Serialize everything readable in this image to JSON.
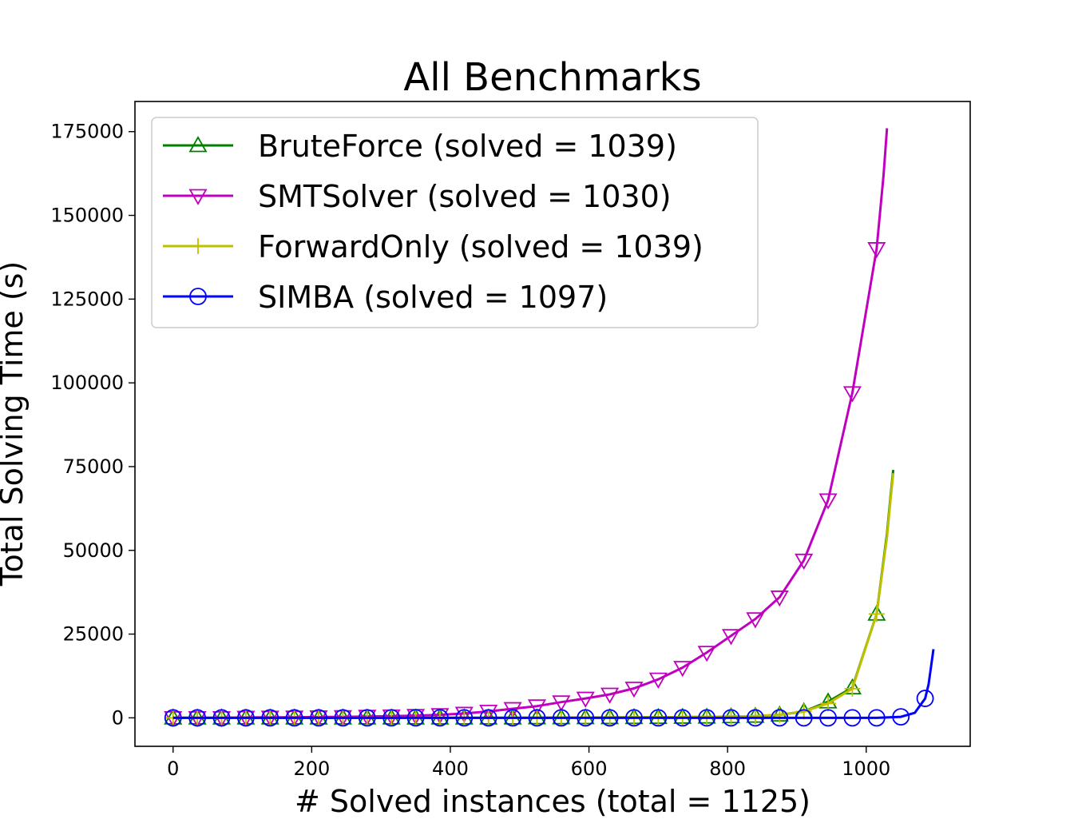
{
  "chart_data": {
    "type": "line",
    "title": "All Benchmarks",
    "xlabel": "# Solved instances (total = 1125)",
    "ylabel": "Total Solving Time (s)",
    "xlim": [
      -55,
      1150
    ],
    "ylim": [
      -8500,
      184000
    ],
    "xticks": [
      0,
      200,
      400,
      600,
      800,
      1000
    ],
    "yticks": [
      0,
      25000,
      50000,
      75000,
      100000,
      125000,
      150000,
      175000
    ],
    "grid": false,
    "legend_position": "top-left",
    "series": [
      {
        "name": "BruteForce (solved = 1039)",
        "color": "#008000",
        "marker": "triangle-up",
        "x": [
          0,
          35,
          70,
          105,
          140,
          175,
          210,
          245,
          280,
          315,
          350,
          385,
          420,
          455,
          490,
          525,
          560,
          595,
          630,
          665,
          700,
          735,
          770,
          805,
          840,
          875,
          910,
          945,
          980,
          1015,
          1030,
          1035,
          1039
        ],
        "y": [
          0,
          0,
          0,
          0,
          0,
          0,
          0,
          0,
          0,
          0,
          0,
          0,
          0,
          0,
          0,
          50,
          60,
          80,
          100,
          130,
          160,
          220,
          280,
          380,
          520,
          900,
          1900,
          4800,
          9000,
          31000,
          55000,
          66000,
          74000
        ]
      },
      {
        "name": "SMTSolver (solved = 1030)",
        "color": "#bf00bf",
        "marker": "triangle-down",
        "x": [
          0,
          35,
          70,
          105,
          140,
          175,
          210,
          245,
          280,
          315,
          350,
          385,
          420,
          455,
          490,
          525,
          560,
          595,
          630,
          665,
          700,
          735,
          770,
          805,
          840,
          875,
          910,
          945,
          980,
          1015,
          1025,
          1030
        ],
        "y": [
          0,
          0,
          0,
          100,
          150,
          180,
          230,
          300,
          400,
          500,
          650,
          900,
          1300,
          1900,
          2700,
          3500,
          4700,
          5800,
          7000,
          8800,
          11500,
          15000,
          19500,
          24500,
          29500,
          36000,
          47000,
          65000,
          97000,
          140000,
          162000,
          176000
        ]
      },
      {
        "name": "ForwardOnly (solved = 1039)",
        "color": "#bfbf00",
        "marker": "plus",
        "x": [
          0,
          35,
          70,
          105,
          140,
          175,
          210,
          245,
          280,
          315,
          350,
          385,
          420,
          455,
          490,
          525,
          560,
          595,
          630,
          665,
          700,
          735,
          770,
          805,
          840,
          875,
          910,
          945,
          980,
          1015,
          1030,
          1035,
          1039
        ],
        "y": [
          0,
          0,
          0,
          0,
          0,
          0,
          0,
          0,
          0,
          0,
          0,
          0,
          0,
          0,
          0,
          50,
          60,
          80,
          100,
          130,
          160,
          220,
          280,
          380,
          520,
          900,
          1900,
          4300,
          8700,
          31000,
          54000,
          65000,
          73000
        ]
      },
      {
        "name": "SIMBA (solved = 1097)",
        "color": "#0000ff",
        "marker": "circle",
        "x": [
          0,
          35,
          70,
          105,
          140,
          175,
          210,
          245,
          280,
          315,
          350,
          385,
          420,
          455,
          490,
          525,
          560,
          595,
          630,
          665,
          700,
          735,
          770,
          805,
          840,
          875,
          910,
          945,
          980,
          1015,
          1050,
          1070,
          1085,
          1090,
          1097
        ],
        "y": [
          0,
          0,
          0,
          0,
          0,
          0,
          0,
          0,
          0,
          0,
          0,
          0,
          0,
          0,
          0,
          0,
          0,
          0,
          0,
          0,
          0,
          0,
          0,
          0,
          0,
          0,
          0,
          0,
          0,
          0,
          300,
          1500,
          5800,
          10000,
          20500
        ]
      }
    ],
    "marker_x": [
      0,
      35,
      70,
      105,
      140,
      175,
      210,
      245,
      280,
      315,
      350,
      385,
      420,
      455,
      490,
      525,
      560,
      595,
      630,
      665,
      700,
      735,
      770,
      805,
      840,
      875,
      910,
      945,
      980,
      1015,
      1050,
      1085
    ]
  }
}
